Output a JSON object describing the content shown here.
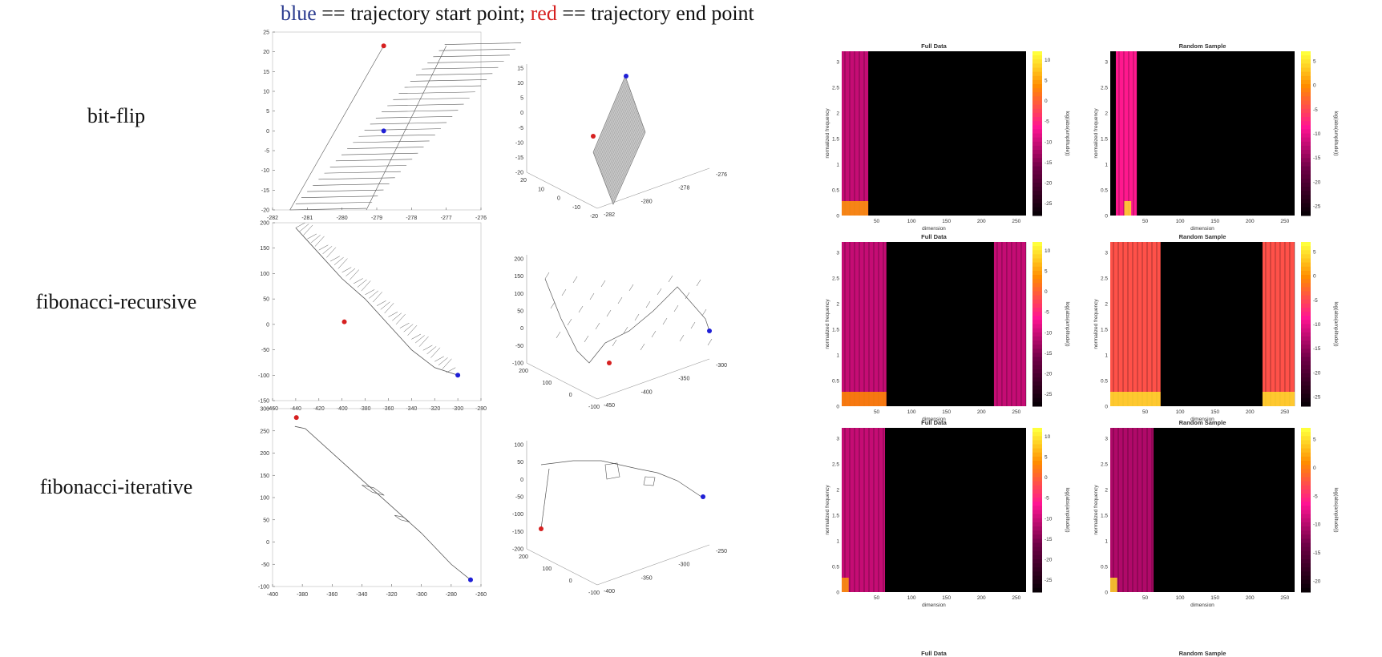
{
  "header": {
    "blue_word": "blue",
    "blue_rest": " == trajectory start point; ",
    "red_word": "red",
    "red_rest": " == trajectory end point"
  },
  "colors": {
    "start": "#1f1fd6",
    "end": "#d62020",
    "trace": "#555555"
  },
  "rows": [
    {
      "label": "bit-flip"
    },
    {
      "label": "fibonacci-recursive"
    },
    {
      "label": "fibonacci-iterative"
    }
  ],
  "chart_data": [
    {
      "type": "line",
      "row": 0,
      "view": "2d",
      "xlim": [
        -282,
        -276
      ],
      "ylim": [
        -20,
        25
      ],
      "xticks": [
        -282,
        -281,
        -280,
        -279,
        -278,
        -277,
        -276
      ],
      "yticks": [
        -20,
        -15,
        -10,
        -5,
        0,
        5,
        10,
        15,
        20,
        25
      ],
      "start": [
        -278.8,
        0
      ],
      "end": [
        -278.8,
        21.5
      ]
    },
    {
      "type": "line",
      "row": 0,
      "view": "3d",
      "z_ticks": [
        -20,
        -15,
        -10,
        -5,
        0,
        5,
        10,
        15
      ],
      "y_ticks": [
        -20,
        -10,
        0,
        10,
        20
      ],
      "x_ticks": [
        -282,
        -280,
        -278,
        -276
      ]
    },
    {
      "type": "heatmap",
      "row": 0,
      "title": "Full Data",
      "xlabel": "dimension",
      "ylabel": "normalized frequency",
      "colorbar_label": "log(abs(amplitude))",
      "xlim": [
        0,
        264
      ],
      "xticks": [
        50,
        100,
        150,
        200,
        250
      ],
      "yticks": [
        0,
        0.5,
        1,
        1.5,
        2,
        2.5,
        3
      ],
      "cbar_ticks": [
        10,
        5,
        0,
        -5,
        -10,
        -15,
        -20,
        -25
      ],
      "cbar_range": [
        -28,
        12
      ],
      "bands": [
        {
          "x": [
            0,
            38
          ],
          "level": -10
        }
      ],
      "hotspots": [
        {
          "x": [
            0,
            38
          ],
          "level": 5
        }
      ]
    },
    {
      "type": "heatmap",
      "row": 0,
      "title": "Random Sample",
      "xlabel": "dimension",
      "ylabel": "normalized frequency",
      "colorbar_label": "log(abs(amplitude))",
      "xlim": [
        0,
        264
      ],
      "xticks": [
        50,
        100,
        150,
        200,
        250
      ],
      "yticks": [
        0,
        0.5,
        1,
        1.5,
        2,
        2.5,
        3
      ],
      "cbar_ticks": [
        5,
        0,
        -5,
        -10,
        -15,
        -20,
        -25
      ],
      "cbar_range": [
        -27,
        7
      ],
      "bands": [
        {
          "x": [
            0,
            8
          ],
          "level": -28
        },
        {
          "x": [
            8,
            38
          ],
          "level": -8
        }
      ],
      "hotspots": [
        {
          "x": [
            20,
            30
          ],
          "level": 5
        }
      ]
    },
    {
      "type": "line",
      "row": 1,
      "view": "2d",
      "xlim": [
        -460,
        -280
      ],
      "ylim": [
        -150,
        200
      ],
      "xticks": [
        -460,
        -440,
        -420,
        -400,
        -380,
        -360,
        -340,
        -320,
        -300,
        -280
      ],
      "yticks": [
        -150,
        -100,
        -50,
        0,
        50,
        100,
        150,
        200
      ],
      "start": [
        -300,
        -100
      ],
      "end": [
        -398,
        5
      ]
    },
    {
      "type": "line",
      "row": 1,
      "view": "3d",
      "z_ticks": [
        -100,
        -50,
        0,
        50,
        100,
        150,
        200
      ],
      "y_ticks": [
        -100,
        0,
        100,
        200
      ],
      "x_ticks": [
        -450,
        -400,
        -350,
        -300
      ]
    },
    {
      "type": "heatmap",
      "row": 1,
      "title": "Full Data",
      "xlabel": "dimension",
      "ylabel": "normalized frequency",
      "colorbar_label": "log(abs(amplitude))",
      "xlim": [
        0,
        264
      ],
      "xticks": [
        50,
        100,
        150,
        200,
        250
      ],
      "yticks": [
        0,
        0.5,
        1,
        1.5,
        2,
        2.5,
        3
      ],
      "cbar_ticks": [
        10,
        5,
        0,
        -5,
        -10,
        -15,
        -20,
        -25
      ],
      "cbar_range": [
        -28,
        12
      ],
      "bands": [
        {
          "x": [
            0,
            64
          ],
          "level": -10
        },
        {
          "x": [
            218,
            264
          ],
          "level": -10
        }
      ],
      "hotspots": [
        {
          "x": [
            0,
            64
          ],
          "level": 4
        }
      ]
    },
    {
      "type": "heatmap",
      "row": 1,
      "title": "Random Sample",
      "xlabel": "dimension",
      "ylabel": "normalized frequency",
      "colorbar_label": "log(abs(amplitude))",
      "xlim": [
        0,
        264
      ],
      "xticks": [
        50,
        100,
        150,
        200,
        250
      ],
      "yticks": [
        0,
        0.5,
        1,
        1.5,
        2,
        2.5,
        3
      ],
      "cbar_ticks": [
        5,
        0,
        -5,
        -10,
        -15,
        -20,
        -25
      ],
      "cbar_range": [
        -27,
        7
      ],
      "bands": [
        {
          "x": [
            0,
            72
          ],
          "level": -4
        },
        {
          "x": [
            218,
            264
          ],
          "level": -4
        }
      ],
      "hotspots": [
        {
          "x": [
            0,
            72
          ],
          "level": 5
        },
        {
          "x": [
            218,
            264
          ],
          "level": 5
        }
      ]
    },
    {
      "type": "line",
      "row": 2,
      "view": "2d",
      "xlim": [
        -400,
        -260
      ],
      "ylim": [
        -100,
        300
      ],
      "xticks": [
        -400,
        -380,
        -360,
        -340,
        -320,
        -300,
        -280,
        -260
      ],
      "yticks": [
        -100,
        -50,
        0,
        50,
        100,
        150,
        200,
        250,
        300
      ],
      "start": [
        -267,
        -85
      ],
      "end": [
        -384,
        280
      ]
    },
    {
      "type": "line",
      "row": 2,
      "view": "3d",
      "z_ticks": [
        -200,
        -150,
        -100,
        -50,
        0,
        50,
        100
      ],
      "y_ticks": [
        -100,
        0,
        100,
        200
      ],
      "x_ticks": [
        -400,
        -350,
        -300,
        -250
      ]
    },
    {
      "type": "heatmap",
      "row": 2,
      "title": "Full Data",
      "xlabel": "dimension",
      "ylabel": "normalized frequency",
      "colorbar_label": "log(abs(amplitude))",
      "xlim": [
        0,
        264
      ],
      "xticks": [
        50,
        100,
        150,
        200,
        250
      ],
      "yticks": [
        0,
        0.5,
        1,
        1.5,
        2,
        2.5,
        3
      ],
      "cbar_ticks": [
        10,
        5,
        0,
        -5,
        -10,
        -15,
        -20,
        -25
      ],
      "cbar_range": [
        -28,
        12
      ],
      "bands": [
        {
          "x": [
            0,
            62
          ],
          "level": -10
        }
      ],
      "hotspots": [
        {
          "x": [
            0,
            10
          ],
          "level": 5
        }
      ]
    },
    {
      "type": "heatmap",
      "row": 2,
      "title": "Random Sample",
      "xlabel": "dimension",
      "ylabel": "normalized frequency",
      "colorbar_label": "log(abs(amplitude))",
      "xlim": [
        0,
        264
      ],
      "xticks": [
        50,
        100,
        150,
        200,
        250
      ],
      "yticks": [
        0,
        0.5,
        1,
        1.5,
        2,
        2.5,
        3
      ],
      "cbar_ticks": [
        5,
        0,
        -5,
        -10,
        -15,
        -20
      ],
      "cbar_range": [
        -22,
        7
      ],
      "bands": [
        {
          "x": [
            0,
            62
          ],
          "level": -10
        }
      ],
      "hotspots": [
        {
          "x": [
            0,
            10
          ],
          "level": 5
        }
      ]
    }
  ],
  "partial_titles": [
    "Full Data",
    "Random Sample"
  ]
}
